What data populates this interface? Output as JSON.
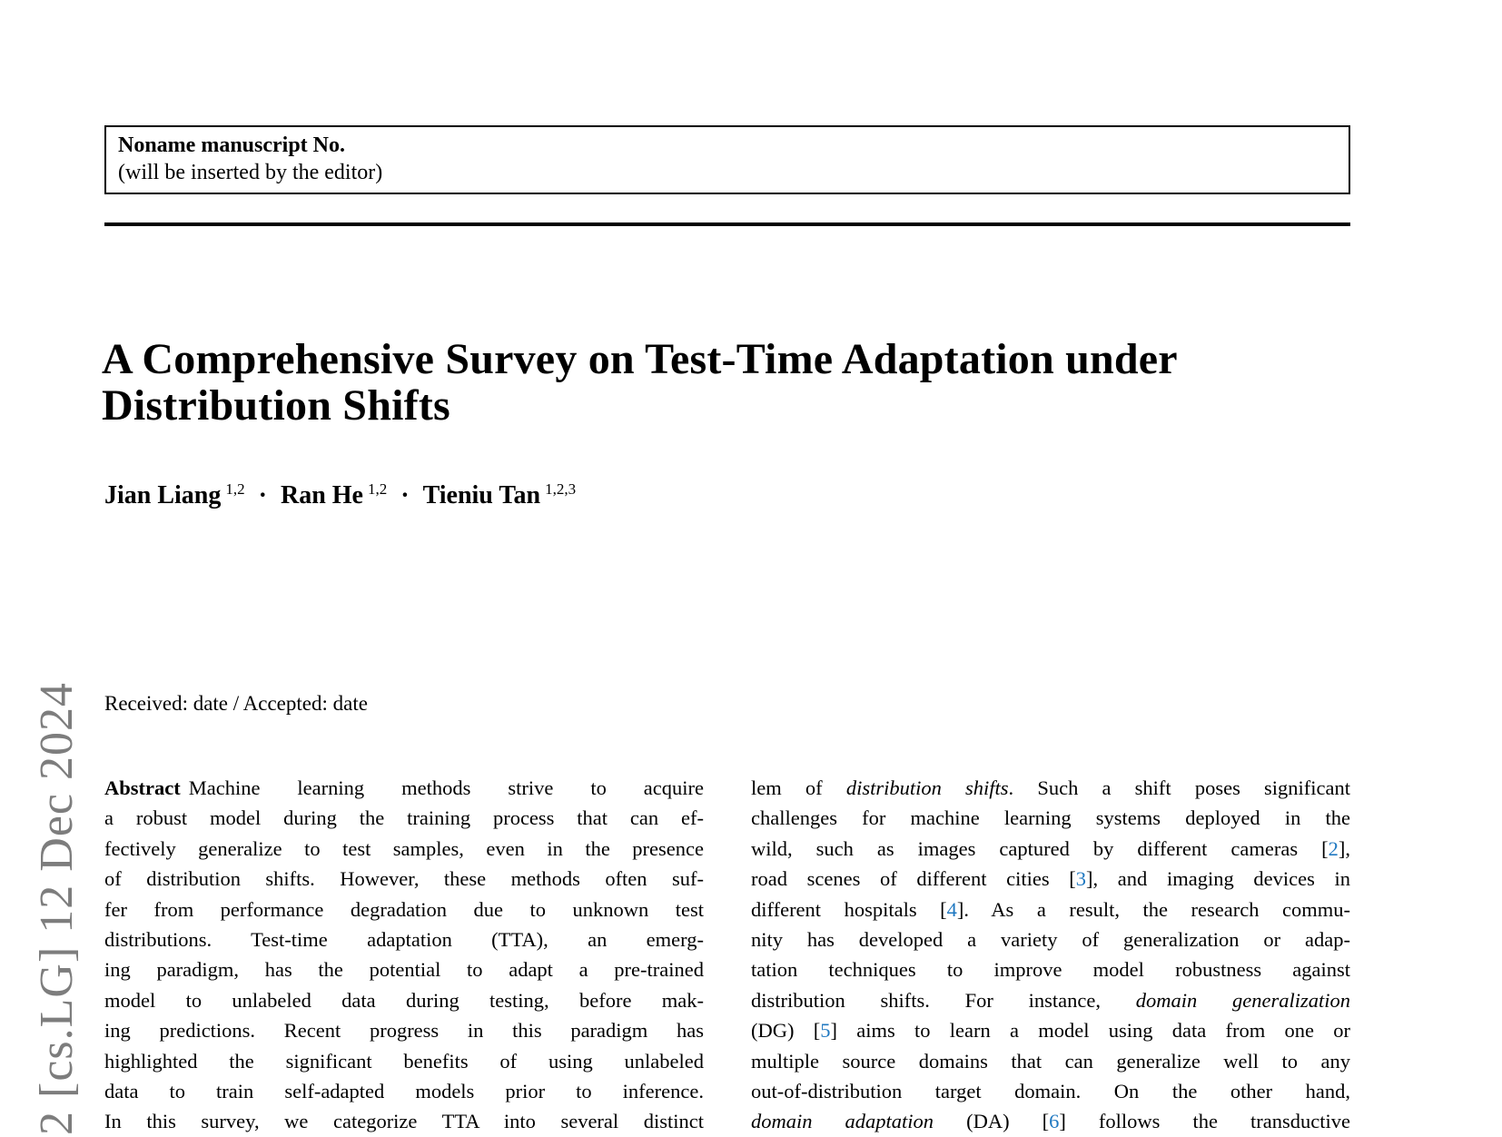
{
  "colors": {
    "cite_blue": "#1f78c1",
    "sidebar_gray": "#7d7d7d",
    "text": "#000000",
    "background": "#ffffff"
  },
  "manuscript_box": {
    "line1": "Noname manuscript No.",
    "line2": "(will be inserted by the editor)"
  },
  "title": {
    "lines": [
      "A Comprehensive Survey on Test-Time Adaptation under",
      "Distribution Shifts"
    ]
  },
  "authors": {
    "runs": [
      {
        "t": "Jian Liang",
        "s": "name"
      },
      {
        "t": "1,2",
        "s": "sup"
      },
      {
        "t": "·",
        "s": "sep"
      },
      {
        "t": "Ran He",
        "s": "name"
      },
      {
        "t": "1,2",
        "s": "sup"
      },
      {
        "t": "·",
        "s": "sep"
      },
      {
        "t": "Tieniu Tan",
        "s": "name"
      },
      {
        "t": "1,2,3",
        "s": "sup"
      }
    ]
  },
  "received_line": "Received: date / Accepted: date",
  "abstract": {
    "left_lines": [
      [
        {
          "t": "Abstract",
          "s": "label"
        },
        {
          "t": "Machine learning methods strive to acquire"
        }
      ],
      [
        {
          "t": "a robust model during the training process that can ef-"
        }
      ],
      [
        {
          "t": "fectively generalize to test samples, even in the presence"
        }
      ],
      [
        {
          "t": "of distribution shifts. However, these methods often suf-"
        }
      ],
      [
        {
          "t": "fer from performance degradation due to unknown test"
        }
      ],
      [
        {
          "t": "distributions. Test-time adaptation (TTA), an emerg-"
        }
      ],
      [
        {
          "t": "ing paradigm, has the potential to adapt a pre-trained"
        }
      ],
      [
        {
          "t": "model to unlabeled data during testing, before mak-"
        }
      ],
      [
        {
          "t": "ing predictions. Recent progress in this paradigm has"
        }
      ],
      [
        {
          "t": "highlighted the significant benefits of using unlabeled"
        }
      ],
      [
        {
          "t": "data to train self-adapted models prior to inference."
        }
      ],
      [
        {
          "t": "In this survey, we categorize TTA into several distinct"
        }
      ]
    ],
    "right_lines": [
      [
        {
          "t": "lem of "
        },
        {
          "t": "distribution shifts",
          "s": "i"
        },
        {
          "t": ". Such a shift poses significant"
        }
      ],
      [
        {
          "t": "challenges for machine learning systems deployed in the"
        }
      ],
      [
        {
          "t": "wild, such as images captured by different cameras ["
        },
        {
          "t": "2",
          "s": "cite"
        },
        {
          "t": "],"
        }
      ],
      [
        {
          "t": "road scenes of different cities ["
        },
        {
          "t": "3",
          "s": "cite"
        },
        {
          "t": "], and imaging devices in"
        }
      ],
      [
        {
          "t": "different hospitals ["
        },
        {
          "t": "4",
          "s": "cite"
        },
        {
          "t": "]. As a result, the research commu-"
        }
      ],
      [
        {
          "t": "nity has developed a variety of generalization or adap-"
        }
      ],
      [
        {
          "t": "tation techniques to improve model robustness against"
        }
      ],
      [
        {
          "t": "distribution shifts. For instance, "
        },
        {
          "t": "domain generalization",
          "s": "i"
        }
      ],
      [
        {
          "t": "(DG) ["
        },
        {
          "t": "5",
          "s": "cite"
        },
        {
          "t": "] aims to learn a model using data from one or"
        }
      ],
      [
        {
          "t": "multiple source domains that can generalize well to any"
        }
      ],
      [
        {
          "t": "out-of-distribution target domain. On the other hand,"
        }
      ],
      [
        {
          "t": "domain adaptation",
          "s": "i"
        },
        {
          "t": " (DA) ["
        },
        {
          "t": "6",
          "s": "cite"
        },
        {
          "t": "] follows the transductive"
        }
      ]
    ]
  },
  "sidebar": {
    "text": "2 [cs.LG] 12 Dec 2024"
  }
}
